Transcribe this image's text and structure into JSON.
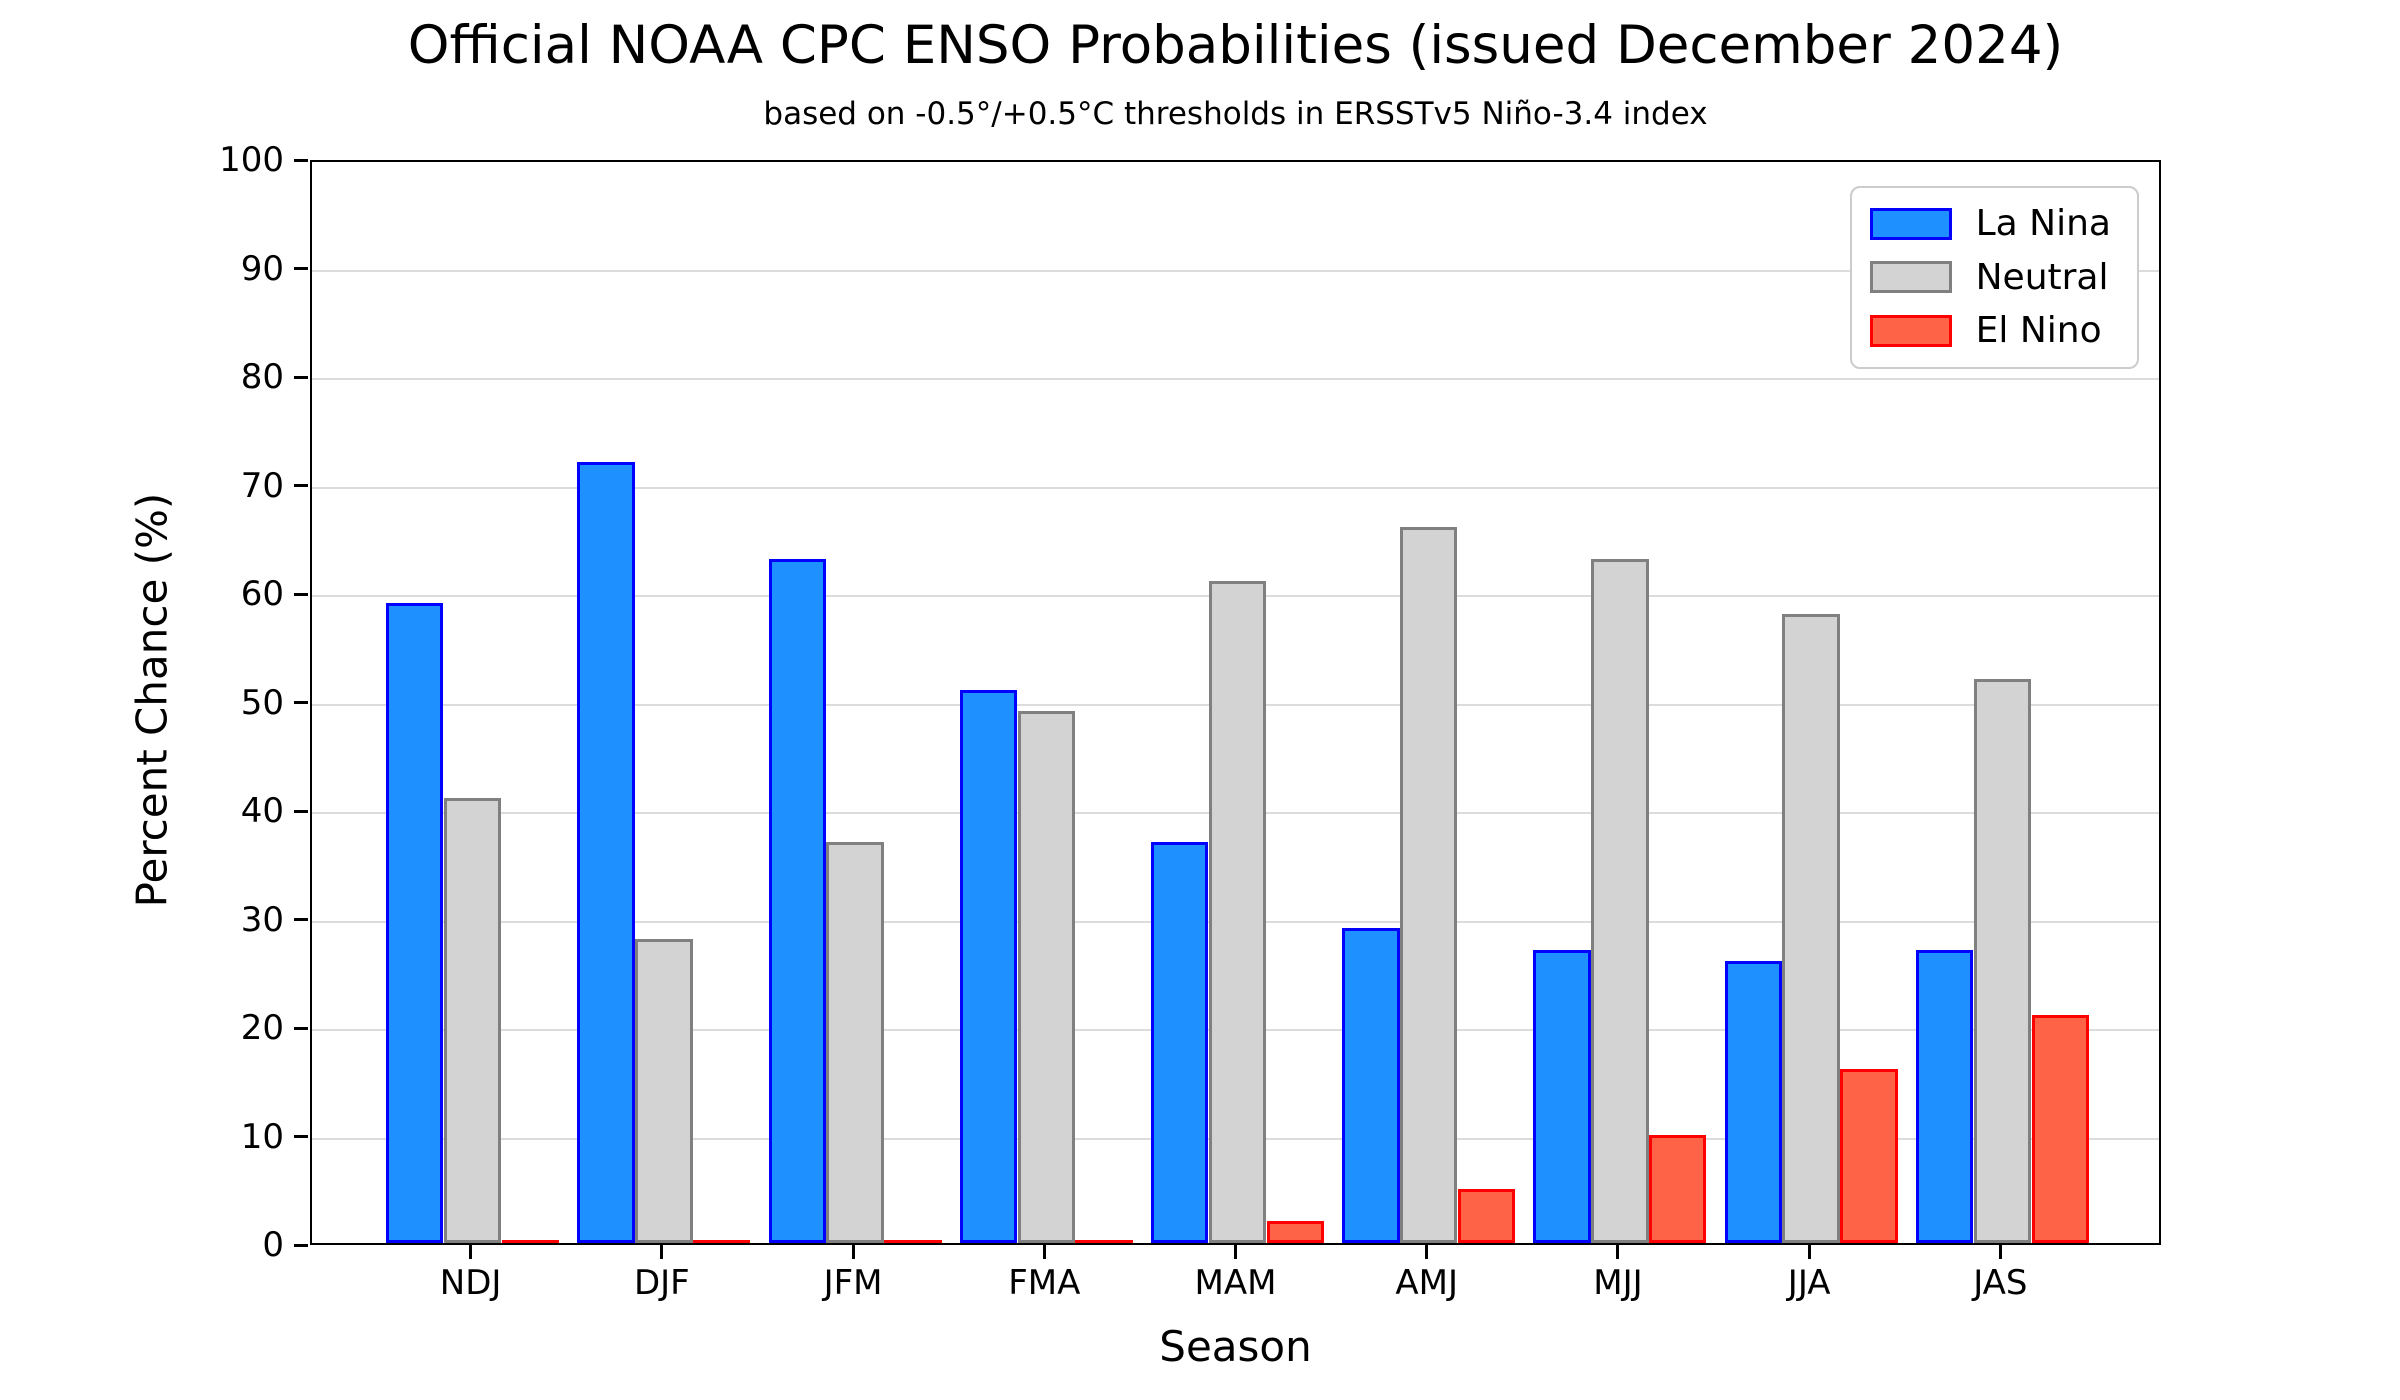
{
  "figure": {
    "title": "Official NOAA CPC ENSO Probabilities (issued December 2024)",
    "subtitle": "based on -0.5°/+0.5°C thresholds in ERSSTv5 Niño-3.4 index",
    "xlabel": "Season",
    "ylabel": "Percent Chance (%)"
  },
  "chart_data": {
    "type": "bar",
    "title": "Official NOAA CPC ENSO Probabilities (issued December 2024)",
    "subtitle": "based on -0.5°/+0.5°C thresholds in ERSSTv5 Niño-3.4 index",
    "xlabel": "Season",
    "ylabel": "Percent Chance (%)",
    "categories": [
      "NDJ",
      "DJF",
      "JFM",
      "FMA",
      "MAM",
      "AMJ",
      "MJJ",
      "JJA",
      "JAS"
    ],
    "series": [
      {
        "name": "La Nina",
        "fill": "#1E90FF",
        "edge": "#0000FF",
        "values": [
          59,
          72,
          63,
          51,
          37,
          29,
          27,
          26,
          27
        ]
      },
      {
        "name": "Neutral",
        "fill": "#D3D3D3",
        "edge": "#808080",
        "values": [
          41,
          28,
          37,
          49,
          61,
          66,
          63,
          58,
          52
        ]
      },
      {
        "name": "El Nino",
        "fill": "#FF6347",
        "edge": "#FF0000",
        "values": [
          0,
          0,
          0,
          0,
          2,
          5,
          10,
          16,
          21
        ]
      }
    ],
    "ylim": [
      0,
      100
    ],
    "yticks": [
      0,
      10,
      20,
      30,
      40,
      50,
      60,
      70,
      80,
      90,
      100
    ],
    "grid": true,
    "legend_position": "upper right",
    "colors": {
      "grid": "#dcdcdc",
      "spine": "#000000",
      "legend_border": "#cccccc"
    }
  }
}
